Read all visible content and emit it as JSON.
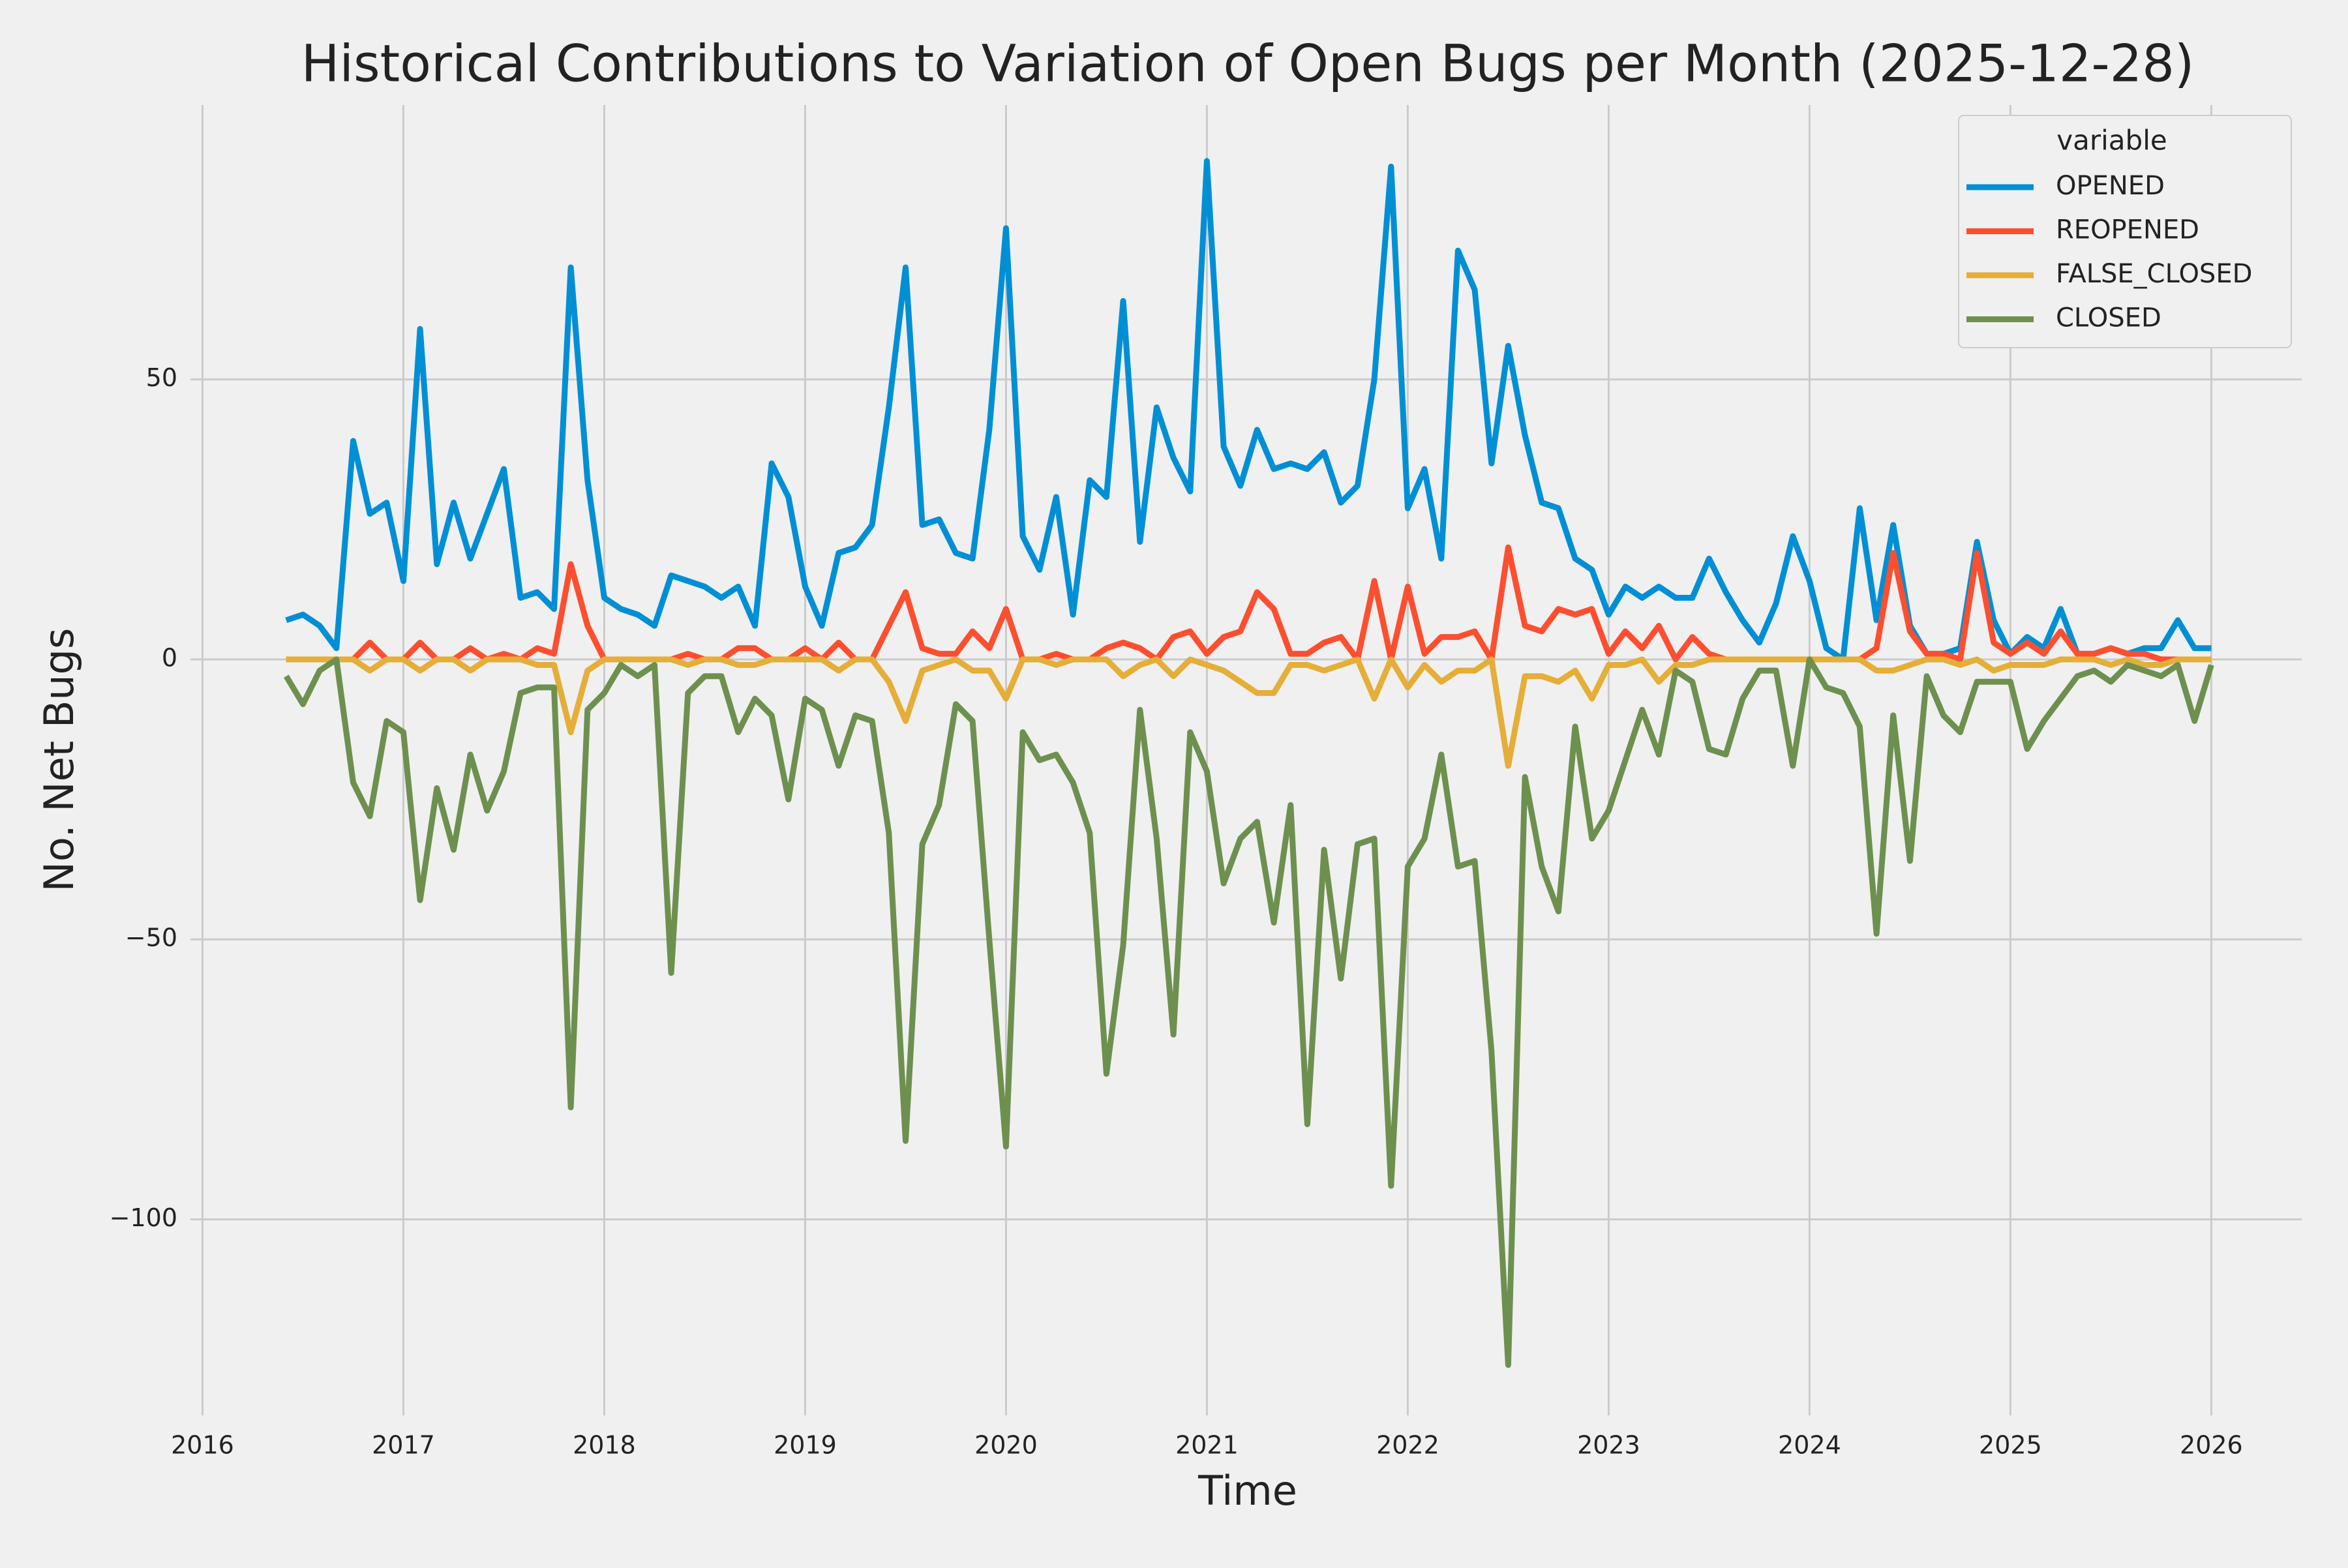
{
  "chart_data": {
    "type": "line",
    "title": "Historical Contributions to Variation of Open Bugs per Month (2025-12-28)",
    "x_label": "Time",
    "y_label": "No. Net Bugs",
    "legend_title": "variable",
    "legend_position": "upper right",
    "grid": true,
    "x": [
      "2016-05",
      "2016-06",
      "2016-07",
      "2016-08",
      "2016-09",
      "2016-10",
      "2016-11",
      "2016-12",
      "2017-01",
      "2017-02",
      "2017-03",
      "2017-04",
      "2017-05",
      "2017-06",
      "2017-07",
      "2017-08",
      "2017-09",
      "2017-10",
      "2017-11",
      "2017-12",
      "2018-01",
      "2018-02",
      "2018-03",
      "2018-04",
      "2018-05",
      "2018-06",
      "2018-07",
      "2018-08",
      "2018-09",
      "2018-10",
      "2018-11",
      "2018-12",
      "2019-01",
      "2019-02",
      "2019-03",
      "2019-04",
      "2019-05",
      "2019-06",
      "2019-07",
      "2019-08",
      "2019-09",
      "2019-10",
      "2019-11",
      "2019-12",
      "2020-01",
      "2020-02",
      "2020-03",
      "2020-04",
      "2020-05",
      "2020-06",
      "2020-07",
      "2020-08",
      "2020-09",
      "2020-10",
      "2020-11",
      "2020-12",
      "2021-01",
      "2021-02",
      "2021-03",
      "2021-04",
      "2021-05",
      "2021-06",
      "2021-07",
      "2021-08",
      "2021-09",
      "2021-10",
      "2021-11",
      "2021-12",
      "2022-01",
      "2022-02",
      "2022-03",
      "2022-04",
      "2022-05",
      "2022-06",
      "2022-07",
      "2022-08",
      "2022-09",
      "2022-10",
      "2022-11",
      "2022-12",
      "2023-01",
      "2023-02",
      "2023-03",
      "2023-04",
      "2023-05",
      "2023-06",
      "2023-07",
      "2023-08",
      "2023-09",
      "2023-10",
      "2023-11",
      "2023-12",
      "2024-01",
      "2024-02",
      "2024-03",
      "2024-04",
      "2024-05",
      "2024-06",
      "2024-07",
      "2024-08",
      "2024-09",
      "2024-10",
      "2024-11",
      "2024-12",
      "2025-01",
      "2025-02",
      "2025-03",
      "2025-04",
      "2025-05",
      "2025-06",
      "2025-07",
      "2025-08",
      "2025-09",
      "2025-10",
      "2025-11",
      "2025-12"
    ],
    "series": [
      {
        "name": "OPENED",
        "color": "#008fd5",
        "values": [
          7,
          8,
          6,
          2,
          39,
          26,
          28,
          14,
          59,
          17,
          28,
          18,
          26,
          34,
          11,
          12,
          9,
          70,
          32,
          11,
          9,
          8,
          6,
          15,
          14,
          13,
          11,
          13,
          6,
          35,
          29,
          13,
          6,
          19,
          20,
          24,
          45,
          70,
          24,
          25,
          19,
          18,
          41,
          77,
          22,
          16,
          29,
          8,
          32,
          29,
          64,
          21,
          45,
          36,
          30,
          89,
          38,
          31,
          41,
          34,
          35,
          34,
          37,
          28,
          31,
          50,
          88,
          27,
          34,
          18,
          73,
          66,
          35,
          56,
          40,
          28,
          27,
          18,
          16,
          8,
          13,
          11,
          13,
          11,
          11,
          18,
          12,
          7,
          3,
          10,
          22,
          14,
          2,
          0,
          27,
          7,
          24,
          6,
          1,
          1,
          2,
          21,
          7,
          1,
          4,
          2,
          9,
          1,
          1,
          2,
          1,
          2,
          2,
          7,
          2,
          2
        ]
      },
      {
        "name": "REOPENED",
        "color": "#fc4f30",
        "values": [
          0,
          0,
          0,
          0,
          0,
          3,
          0,
          0,
          3,
          0,
          0,
          2,
          0,
          1,
          0,
          2,
          1,
          17,
          6,
          0,
          0,
          0,
          0,
          0,
          1,
          0,
          0,
          2,
          2,
          0,
          0,
          2,
          0,
          3,
          0,
          0,
          6,
          12,
          2,
          1,
          1,
          5,
          2,
          9,
          0,
          0,
          1,
          0,
          0,
          2,
          3,
          2,
          0,
          4,
          5,
          1,
          4,
          5,
          12,
          9,
          1,
          1,
          3,
          4,
          0,
          14,
          0,
          13,
          1,
          4,
          4,
          5,
          0,
          20,
          6,
          5,
          9,
          8,
          9,
          1,
          5,
          2,
          6,
          0,
          4,
          1,
          0,
          0,
          0,
          0,
          0,
          0,
          0,
          0,
          0,
          2,
          19,
          5,
          1,
          1,
          0,
          19,
          3,
          1,
          3,
          1,
          5,
          1,
          1,
          2,
          1,
          1,
          0,
          0,
          0,
          0
        ]
      },
      {
        "name": "FALSE_CLOSED",
        "color": "#e5ae38",
        "values": [
          0,
          0,
          0,
          0,
          0,
          -2,
          0,
          0,
          -2,
          0,
          0,
          -2,
          0,
          0,
          0,
          -1,
          -1,
          -13,
          -2,
          0,
          0,
          0,
          0,
          0,
          -1,
          0,
          0,
          -1,
          -1,
          0,
          0,
          0,
          0,
          -2,
          0,
          0,
          -4,
          -11,
          -2,
          -1,
          0,
          -2,
          -2,
          -7,
          0,
          0,
          -1,
          0,
          0,
          0,
          -3,
          -1,
          0,
          -3,
          0,
          -1,
          -2,
          -4,
          -6,
          -6,
          -1,
          -1,
          -2,
          -1,
          0,
          -7,
          0,
          -5,
          -1,
          -4,
          -2,
          -2,
          0,
          -19,
          -3,
          -3,
          -4,
          -2,
          -7,
          -1,
          -1,
          0,
          -4,
          -1,
          -1,
          0,
          0,
          0,
          0,
          0,
          0,
          0,
          0,
          0,
          0,
          -2,
          -2,
          -1,
          0,
          0,
          -1,
          0,
          -2,
          -1,
          -1,
          -1,
          0,
          0,
          0,
          -1,
          0,
          -1,
          -1,
          0,
          0,
          0
        ]
      },
      {
        "name": "CLOSED",
        "color": "#6d904f",
        "values": [
          -3,
          -8,
          -2,
          0,
          -22,
          -28,
          -11,
          -13,
          -43,
          -23,
          -34,
          -17,
          -27,
          -20,
          -6,
          -5,
          -5,
          -80,
          -9,
          -6,
          -1,
          -3,
          -1,
          -56,
          -6,
          -3,
          -3,
          -13,
          -7,
          -10,
          -25,
          -7,
          -9,
          -19,
          -10,
          -11,
          -31,
          -86,
          -33,
          -26,
          -8,
          -11,
          -50,
          -87,
          -13,
          -18,
          -17,
          -22,
          -31,
          -74,
          -51,
          -9,
          -32,
          -67,
          -13,
          -20,
          -40,
          -32,
          -29,
          -47,
          -26,
          -83,
          -34,
          -57,
          -33,
          -32,
          -94,
          -37,
          -32,
          -17,
          -37,
          -36,
          -70,
          -126,
          -21,
          -37,
          -45,
          -12,
          -32,
          -27,
          -18,
          -9,
          -17,
          -2,
          -4,
          -16,
          -17,
          -7,
          -2,
          -2,
          -19,
          0,
          -5,
          -6,
          -12,
          -49,
          -10,
          -36,
          -3,
          -10,
          -13,
          -4,
          -4,
          -4,
          -16,
          -11,
          -7,
          -3,
          -2,
          -4,
          -1,
          -2,
          -3,
          -1,
          -11,
          -1
        ]
      }
    ],
    "xlim": [
      2015.94,
      2026.45
    ],
    "xticks": [
      2016,
      2017,
      2018,
      2019,
      2020,
      2021,
      2022,
      2023,
      2024,
      2025,
      2026
    ],
    "ylim": [
      -135,
      99
    ],
    "yticks": [
      {
        "value": -100,
        "label": "−100"
      },
      {
        "value": -50,
        "label": "−50"
      },
      0,
      50
    ]
  }
}
